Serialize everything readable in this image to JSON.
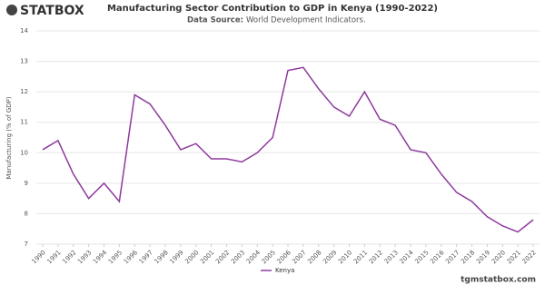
{
  "logo": "STATBOX",
  "chart_data": {
    "type": "line",
    "title": "Manufacturing Sector Contribution to GDP in Kenya (1990-2022)",
    "source_label": "Data Source:",
    "source": "World Development Indicators.",
    "y_label": "Manufacturing (% of GDP)",
    "x": [
      1990,
      1991,
      1992,
      1993,
      1994,
      1995,
      1996,
      1997,
      1998,
      1999,
      2000,
      2001,
      2002,
      2003,
      2004,
      2005,
      2006,
      2007,
      2008,
      2009,
      2010,
      2011,
      2012,
      2013,
      2014,
      2015,
      2016,
      2017,
      2018,
      2019,
      2020,
      2021,
      2022
    ],
    "series": [
      {
        "name": "Kenya",
        "color": "#8e3a9d",
        "values": [
          10.1,
          10.4,
          9.3,
          8.5,
          9.0,
          8.4,
          11.9,
          11.6,
          10.9,
          10.1,
          10.3,
          9.8,
          9.8,
          9.7,
          10.0,
          10.5,
          12.7,
          12.8,
          12.1,
          11.5,
          11.2,
          12.0,
          11.1,
          10.9,
          10.1,
          10.0,
          9.3,
          8.7,
          8.4,
          7.9,
          7.6,
          7.4,
          7.8
        ]
      }
    ],
    "xlim": [
      1990,
      2022
    ],
    "ylim": [
      7,
      14
    ],
    "yticks": [
      7,
      8,
      9,
      10,
      11,
      12,
      13,
      14
    ],
    "grid": true,
    "footer": "tgmstatbox.com"
  }
}
